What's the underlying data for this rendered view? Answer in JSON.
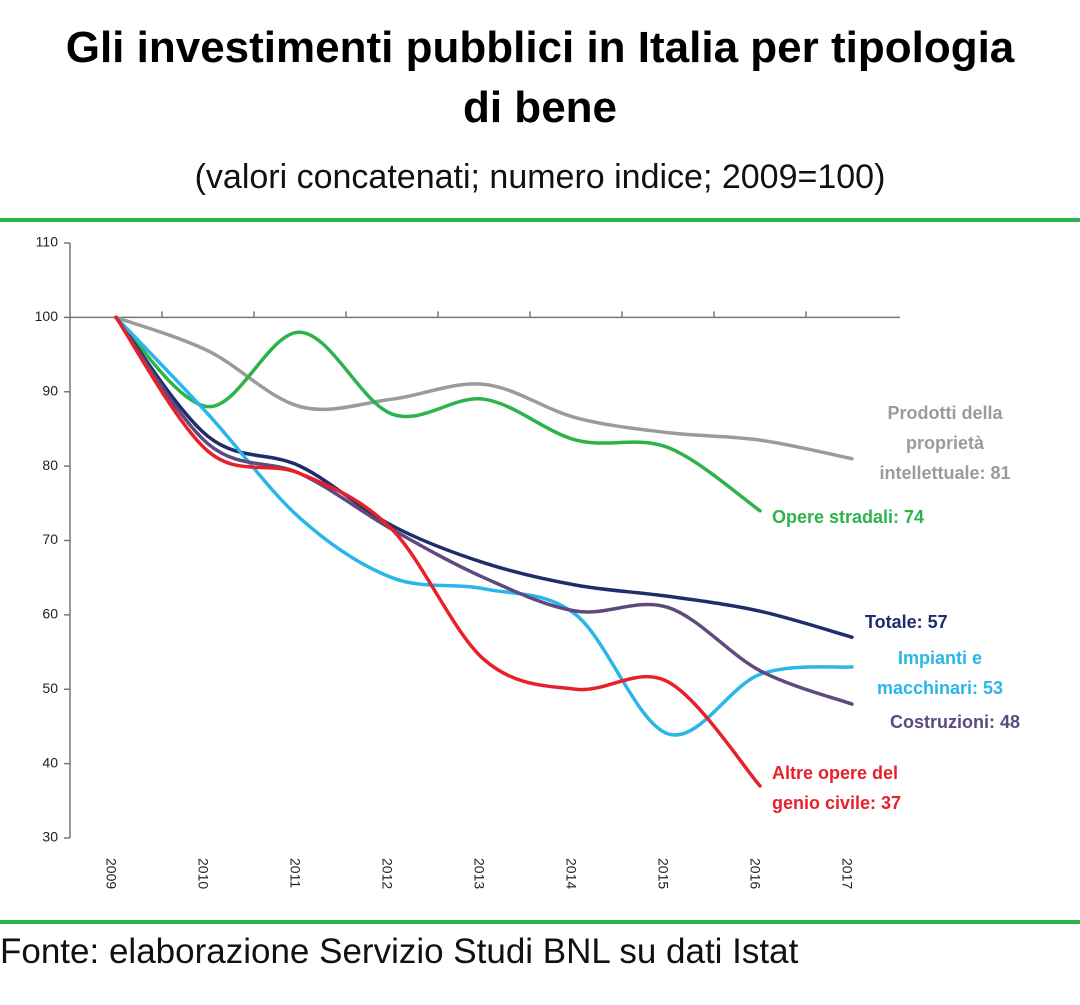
{
  "chart_data": {
    "type": "line",
    "title": "Gli investimenti pubblici in Italia per tipologia di bene",
    "subtitle": "(valori concatenati; numero indice; 2009=100)",
    "source": "Fonte: elaborazione Servizio Studi BNL su dati Istat",
    "categories": [
      "2009",
      "2010",
      "2011",
      "2012",
      "2013",
      "2014",
      "2015",
      "2016",
      "2017"
    ],
    "ylim": [
      30,
      110
    ],
    "yticks": [
      30,
      40,
      50,
      60,
      70,
      80,
      90,
      100,
      110
    ],
    "baseline": 100,
    "smooth": true,
    "series": [
      {
        "name": "Prodotti della proprietà intellettuale: 81",
        "color": "#9b9b9b",
        "values": [
          100,
          95.5,
          88,
          89,
          91,
          86.5,
          84.5,
          83.5,
          81
        ]
      },
      {
        "name": "Opere stradali: 74",
        "color": "#2eb34a",
        "values": [
          100,
          88,
          98,
          87,
          89,
          83.5,
          82.5,
          74,
          null
        ]
      },
      {
        "name": "Totale: 57",
        "color": "#1f2d6b",
        "values": [
          100,
          84,
          80,
          72,
          67,
          64,
          62.5,
          60.5,
          57
        ]
      },
      {
        "name": "Impianti e macchinari: 53",
        "color": "#29b6e8",
        "values": [
          100,
          87,
          73,
          65,
          63.5,
          60,
          44,
          52,
          53
        ]
      },
      {
        "name": "Costruzioni: 48",
        "color": "#5e4a7e",
        "values": [
          100,
          83,
          79,
          71.5,
          65,
          60.5,
          61,
          52.5,
          48
        ]
      },
      {
        "name": "Altre opere del genio civile: 37",
        "color": "#e8202a",
        "values": [
          100,
          82,
          79,
          71.5,
          54,
          50,
          51,
          37,
          null
        ]
      }
    ]
  }
}
